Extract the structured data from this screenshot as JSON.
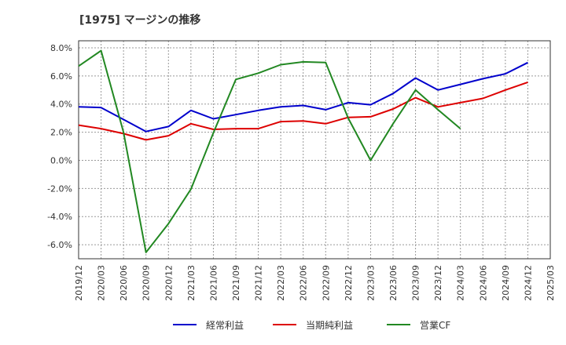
{
  "chart_data": {
    "type": "line",
    "title": "[1975]  マージンの推移",
    "x": [
      "2019/12",
      "2020/03",
      "2020/06",
      "2020/09",
      "2020/12",
      "2021/03",
      "2021/06",
      "2021/09",
      "2021/12",
      "2022/03",
      "2022/06",
      "2022/09",
      "2022/12",
      "2023/03",
      "2023/06",
      "2023/09",
      "2023/12",
      "2024/03",
      "2024/06",
      "2024/09",
      "2024/12",
      "2025/03"
    ],
    "y_ticks": [
      "8.0%",
      "6.0%",
      "4.0%",
      "2.0%",
      "0.0%",
      "-2.0%",
      "-4.0%",
      "-6.0%"
    ],
    "ylim": [
      -7.0,
      8.5
    ],
    "grid": true,
    "legend_position": "bottom",
    "series": [
      {
        "name": "経常利益",
        "color": "#0000cc",
        "values": [
          3.8,
          3.75,
          2.9,
          2.05,
          2.4,
          3.55,
          2.95,
          3.25,
          3.55,
          3.8,
          3.9,
          3.6,
          4.1,
          3.95,
          4.75,
          5.85,
          5.0,
          5.4,
          5.8,
          6.15,
          6.95,
          null
        ]
      },
      {
        "name": "当期純利益",
        "color": "#dd0000",
        "values": [
          2.5,
          2.25,
          1.9,
          1.45,
          1.75,
          2.6,
          2.2,
          2.25,
          2.25,
          2.75,
          2.8,
          2.6,
          3.05,
          3.1,
          3.65,
          4.45,
          3.8,
          4.1,
          4.4,
          5.0,
          5.55,
          null
        ]
      },
      {
        "name": "営業CF",
        "color": "#228822",
        "values": [
          6.7,
          7.8,
          2.0,
          -6.55,
          -4.5,
          -2.05,
          1.95,
          5.75,
          6.2,
          6.8,
          7.0,
          6.95,
          3.0,
          0.0,
          2.6,
          5.0,
          3.6,
          2.25,
          null,
          null,
          null,
          null
        ]
      }
    ]
  }
}
